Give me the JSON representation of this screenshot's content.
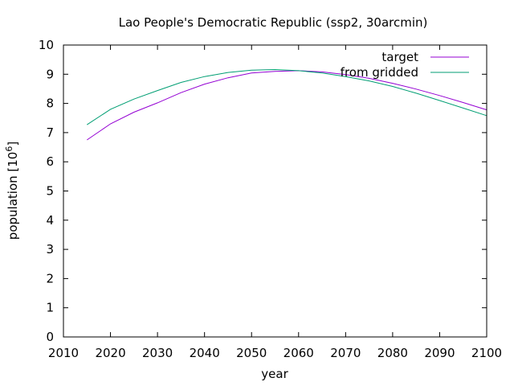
{
  "chart_data": {
    "type": "line",
    "title": "Lao People's Democratic Republic (ssp2, 30arcmin)",
    "xlabel": "year",
    "ylabel_main": "population [10",
    "ylabel_exp": "6",
    "ylabel_close": "]",
    "xlim": [
      2010,
      2100
    ],
    "ylim": [
      0,
      10
    ],
    "xticks": [
      2010,
      2020,
      2030,
      2040,
      2050,
      2060,
      2070,
      2080,
      2090,
      2100
    ],
    "yticks": [
      0,
      1,
      2,
      3,
      4,
      5,
      6,
      7,
      8,
      9,
      10
    ],
    "grid": false,
    "legend_position": "top-right",
    "series": [
      {
        "name": "target",
        "color": "#9400d3",
        "x": [
          2015,
          2020,
          2025,
          2030,
          2035,
          2040,
          2045,
          2050,
          2055,
          2060,
          2065,
          2070,
          2075,
          2080,
          2085,
          2090,
          2095,
          2100
        ],
        "y": [
          6.75,
          7.3,
          7.7,
          8.02,
          8.37,
          8.66,
          8.88,
          9.04,
          9.1,
          9.12,
          9.08,
          8.99,
          8.86,
          8.69,
          8.49,
          8.27,
          8.03,
          7.78
        ]
      },
      {
        "name": "from gridded",
        "color": "#009e73",
        "x": [
          2015,
          2020,
          2025,
          2030,
          2035,
          2040,
          2045,
          2050,
          2055,
          2060,
          2065,
          2070,
          2075,
          2080,
          2085,
          2090,
          2095,
          2100
        ],
        "y": [
          7.27,
          7.8,
          8.15,
          8.44,
          8.72,
          8.92,
          9.06,
          9.14,
          9.16,
          9.12,
          9.04,
          8.92,
          8.77,
          8.58,
          8.35,
          8.1,
          7.84,
          7.58
        ]
      }
    ]
  }
}
